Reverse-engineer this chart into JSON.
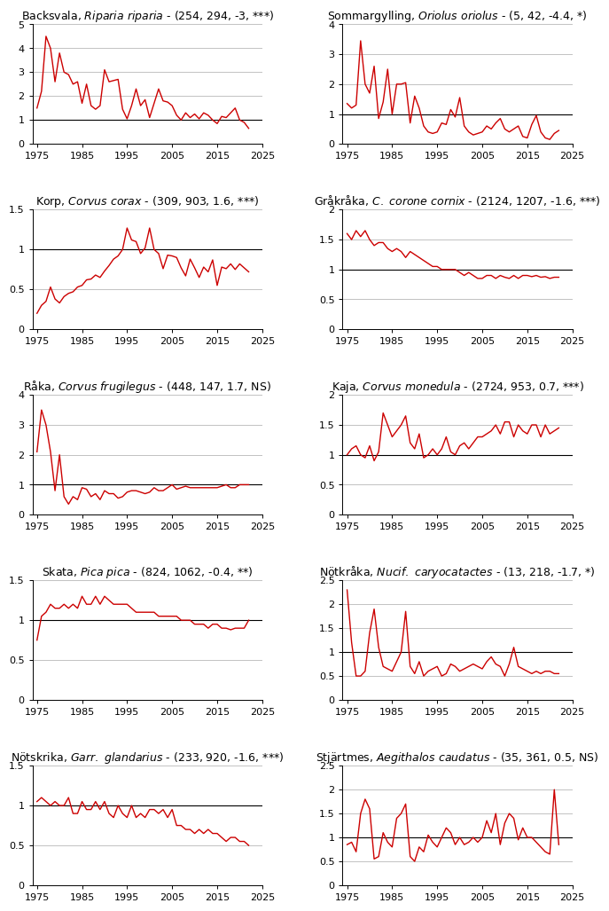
{
  "plots": [
    {
      "title_regular": "Backsvala, ",
      "title_italic": "Riparia riparia",
      "title_rest": " - (254, 294, -3, ***)",
      "ylim": [
        0,
        5
      ],
      "yticks": [
        0,
        1,
        2,
        3,
        4,
        5
      ],
      "hline": 1.0,
      "years": [
        1975,
        1976,
        1977,
        1978,
        1979,
        1980,
        1981,
        1982,
        1983,
        1984,
        1985,
        1986,
        1987,
        1988,
        1989,
        1990,
        1991,
        1992,
        1993,
        1994,
        1995,
        1996,
        1997,
        1998,
        1999,
        2000,
        2001,
        2002,
        2003,
        2004,
        2005,
        2006,
        2007,
        2008,
        2009,
        2010,
        2011,
        2012,
        2013,
        2014,
        2015,
        2016,
        2017,
        2018,
        2019,
        2020,
        2021,
        2022
      ],
      "values": [
        1.5,
        2.2,
        4.5,
        4.0,
        2.6,
        3.8,
        3.0,
        2.9,
        2.5,
        2.6,
        1.7,
        2.5,
        1.6,
        1.45,
        1.6,
        3.1,
        2.6,
        2.65,
        2.7,
        1.45,
        1.05,
        1.6,
        2.3,
        1.6,
        1.85,
        1.1,
        1.7,
        2.3,
        1.8,
        1.75,
        1.6,
        1.2,
        1.0,
        1.3,
        1.1,
        1.25,
        1.05,
        1.3,
        1.2,
        1.0,
        0.85,
        1.15,
        1.1,
        1.3,
        1.5,
        1.0,
        0.9,
        0.65
      ]
    },
    {
      "title_regular": "Sommargylling, ",
      "title_italic": "Oriolus oriolus",
      "title_rest": " - (5, 42, -4.4, *)",
      "ylim": [
        0,
        4
      ],
      "yticks": [
        0,
        1,
        2,
        3,
        4
      ],
      "hline": 1.0,
      "years": [
        1975,
        1976,
        1977,
        1978,
        1979,
        1980,
        1981,
        1982,
        1983,
        1984,
        1985,
        1986,
        1987,
        1988,
        1989,
        1990,
        1991,
        1992,
        1993,
        1994,
        1995,
        1996,
        1997,
        1998,
        1999,
        2000,
        2001,
        2002,
        2003,
        2004,
        2005,
        2006,
        2007,
        2008,
        2009,
        2010,
        2011,
        2012,
        2013,
        2014,
        2015,
        2016,
        2017,
        2018,
        2019,
        2020,
        2021,
        2022
      ],
      "values": [
        1.35,
        1.2,
        1.3,
        3.45,
        2.0,
        1.7,
        2.6,
        0.85,
        1.4,
        2.5,
        1.0,
        2.0,
        2.0,
        2.05,
        0.7,
        1.6,
        1.2,
        0.6,
        0.4,
        0.35,
        0.4,
        0.7,
        0.65,
        1.15,
        0.9,
        1.55,
        0.6,
        0.4,
        0.3,
        0.35,
        0.4,
        0.6,
        0.5,
        0.7,
        0.85,
        0.5,
        0.4,
        0.5,
        0.6,
        0.25,
        0.2,
        0.65,
        0.95,
        0.4,
        0.2,
        0.15,
        0.35,
        0.45
      ]
    },
    {
      "title_regular": "Korp, ",
      "title_italic": "Corvus corax",
      "title_rest": " - (309, 903, 1.6, ***)",
      "ylim": [
        0.0,
        1.5
      ],
      "yticks": [
        0.0,
        0.5,
        1.0,
        1.5
      ],
      "hline": 1.0,
      "years": [
        1975,
        1976,
        1977,
        1978,
        1979,
        1980,
        1981,
        1982,
        1983,
        1984,
        1985,
        1986,
        1987,
        1988,
        1989,
        1990,
        1991,
        1992,
        1993,
        1994,
        1995,
        1996,
        1997,
        1998,
        1999,
        2000,
        2001,
        2002,
        2003,
        2004,
        2005,
        2006,
        2007,
        2008,
        2009,
        2010,
        2011,
        2012,
        2013,
        2014,
        2015,
        2016,
        2017,
        2018,
        2019,
        2020,
        2021,
        2022
      ],
      "values": [
        0.2,
        0.3,
        0.35,
        0.53,
        0.38,
        0.33,
        0.41,
        0.45,
        0.47,
        0.53,
        0.55,
        0.62,
        0.63,
        0.68,
        0.65,
        0.73,
        0.8,
        0.88,
        0.92,
        1.0,
        1.27,
        1.12,
        1.1,
        0.95,
        1.02,
        1.27,
        1.0,
        0.95,
        0.76,
        0.93,
        0.92,
        0.9,
        0.77,
        0.67,
        0.88,
        0.77,
        0.65,
        0.78,
        0.72,
        0.87,
        0.55,
        0.78,
        0.76,
        0.82,
        0.75,
        0.82,
        0.77,
        0.72
      ]
    },
    {
      "title_regular": "Gråkråka, ",
      "title_italic": "C. corone cornix",
      "title_rest": " - (2124, 1207, -1.6, ***)",
      "ylim": [
        0.0,
        2.0
      ],
      "yticks": [
        0.0,
        0.5,
        1.0,
        1.5,
        2.0
      ],
      "hline": 1.0,
      "years": [
        1975,
        1976,
        1977,
        1978,
        1979,
        1980,
        1981,
        1982,
        1983,
        1984,
        1985,
        1986,
        1987,
        1988,
        1989,
        1990,
        1991,
        1992,
        1993,
        1994,
        1995,
        1996,
        1997,
        1998,
        1999,
        2000,
        2001,
        2002,
        2003,
        2004,
        2005,
        2006,
        2007,
        2008,
        2009,
        2010,
        2011,
        2012,
        2013,
        2014,
        2015,
        2016,
        2017,
        2018,
        2019,
        2020,
        2021,
        2022
      ],
      "values": [
        1.6,
        1.5,
        1.65,
        1.55,
        1.65,
        1.5,
        1.4,
        1.45,
        1.45,
        1.35,
        1.3,
        1.35,
        1.3,
        1.2,
        1.3,
        1.25,
        1.2,
        1.15,
        1.1,
        1.05,
        1.05,
        1.0,
        1.0,
        1.0,
        1.0,
        0.95,
        0.9,
        0.95,
        0.9,
        0.85,
        0.85,
        0.9,
        0.9,
        0.85,
        0.9,
        0.87,
        0.85,
        0.9,
        0.85,
        0.9,
        0.9,
        0.88,
        0.9,
        0.87,
        0.88,
        0.85,
        0.87,
        0.87
      ]
    },
    {
      "title_regular": "Råka, ",
      "title_italic": "Corvus frugilegus",
      "title_rest": " - (448, 147, 1.7, NS)",
      "ylim": [
        0,
        4
      ],
      "yticks": [
        0,
        1,
        2,
        3,
        4
      ],
      "hline": 1.0,
      "years": [
        1975,
        1976,
        1977,
        1978,
        1979,
        1980,
        1981,
        1982,
        1983,
        1984,
        1985,
        1986,
        1987,
        1988,
        1989,
        1990,
        1991,
        1992,
        1993,
        1994,
        1995,
        1996,
        1997,
        1998,
        1999,
        2000,
        2001,
        2002,
        2003,
        2004,
        2005,
        2006,
        2007,
        2008,
        2009,
        2010,
        2011,
        2012,
        2013,
        2014,
        2015,
        2016,
        2017,
        2018,
        2019,
        2020,
        2021,
        2022
      ],
      "values": [
        2.1,
        3.5,
        3.0,
        2.1,
        0.8,
        2.0,
        0.6,
        0.35,
        0.6,
        0.5,
        0.9,
        0.85,
        0.6,
        0.7,
        0.5,
        0.8,
        0.7,
        0.7,
        0.55,
        0.6,
        0.75,
        0.8,
        0.8,
        0.75,
        0.7,
        0.75,
        0.9,
        0.8,
        0.8,
        0.9,
        1.0,
        0.85,
        0.9,
        0.95,
        0.9,
        0.9,
        0.9,
        0.9,
        0.9,
        0.9,
        0.9,
        0.95,
        1.0,
        0.9,
        0.9,
        1.0,
        1.0,
        1.0
      ]
    },
    {
      "title_regular": "Kaja, ",
      "title_italic": "Corvus monedula",
      "title_rest": " - (2724, 953, 0.7, ***)",
      "ylim": [
        0.0,
        2.0
      ],
      "yticks": [
        0.0,
        0.5,
        1.0,
        1.5,
        2.0
      ],
      "hline": 1.0,
      "years": [
        1975,
        1976,
        1977,
        1978,
        1979,
        1980,
        1981,
        1982,
        1983,
        1984,
        1985,
        1986,
        1987,
        1988,
        1989,
        1990,
        1991,
        1992,
        1993,
        1994,
        1995,
        1996,
        1997,
        1998,
        1999,
        2000,
        2001,
        2002,
        2003,
        2004,
        2005,
        2006,
        2007,
        2008,
        2009,
        2010,
        2011,
        2012,
        2013,
        2014,
        2015,
        2016,
        2017,
        2018,
        2019,
        2020,
        2021,
        2022
      ],
      "values": [
        1.0,
        1.1,
        1.15,
        1.0,
        0.95,
        1.15,
        0.9,
        1.05,
        1.7,
        1.5,
        1.3,
        1.4,
        1.5,
        1.65,
        1.2,
        1.1,
        1.35,
        0.95,
        1.0,
        1.1,
        1.0,
        1.1,
        1.3,
        1.05,
        1.0,
        1.15,
        1.2,
        1.1,
        1.2,
        1.3,
        1.3,
        1.35,
        1.4,
        1.5,
        1.35,
        1.55,
        1.55,
        1.3,
        1.5,
        1.4,
        1.35,
        1.5,
        1.5,
        1.3,
        1.5,
        1.35,
        1.4,
        1.45
      ]
    },
    {
      "title_regular": "Skata, ",
      "title_italic": "Pica pica",
      "title_rest": " - (824, 1062, -0.4, **)",
      "ylim": [
        0.0,
        1.5
      ],
      "yticks": [
        0.0,
        0.5,
        1.0,
        1.5
      ],
      "hline": 1.0,
      "years": [
        1975,
        1976,
        1977,
        1978,
        1979,
        1980,
        1981,
        1982,
        1983,
        1984,
        1985,
        1986,
        1987,
        1988,
        1989,
        1990,
        1991,
        1992,
        1993,
        1994,
        1995,
        1996,
        1997,
        1998,
        1999,
        2000,
        2001,
        2002,
        2003,
        2004,
        2005,
        2006,
        2007,
        2008,
        2009,
        2010,
        2011,
        2012,
        2013,
        2014,
        2015,
        2016,
        2017,
        2018,
        2019,
        2020,
        2021,
        2022
      ],
      "values": [
        0.75,
        1.05,
        1.1,
        1.2,
        1.15,
        1.15,
        1.2,
        1.15,
        1.2,
        1.15,
        1.3,
        1.2,
        1.2,
        1.3,
        1.2,
        1.3,
        1.25,
        1.2,
        1.2,
        1.2,
        1.2,
        1.15,
        1.1,
        1.1,
        1.1,
        1.1,
        1.1,
        1.05,
        1.05,
        1.05,
        1.05,
        1.05,
        1.0,
        1.0,
        1.0,
        0.95,
        0.95,
        0.95,
        0.9,
        0.95,
        0.95,
        0.9,
        0.9,
        0.88,
        0.9,
        0.9,
        0.9,
        1.0
      ]
    },
    {
      "title_regular": "Nötkråka, ",
      "title_italic": "Nucif. caryocatactes",
      "title_rest": " - (13, 218, -1.7, *)",
      "ylim": [
        0.0,
        2.5
      ],
      "yticks": [
        0.0,
        0.5,
        1.0,
        1.5,
        2.0,
        2.5
      ],
      "hline": 1.0,
      "years": [
        1975,
        1976,
        1977,
        1978,
        1979,
        1980,
        1981,
        1982,
        1983,
        1984,
        1985,
        1986,
        1987,
        1988,
        1989,
        1990,
        1991,
        1992,
        1993,
        1994,
        1995,
        1996,
        1997,
        1998,
        1999,
        2000,
        2001,
        2002,
        2003,
        2004,
        2005,
        2006,
        2007,
        2008,
        2009,
        2010,
        2011,
        2012,
        2013,
        2014,
        2015,
        2016,
        2017,
        2018,
        2019,
        2020,
        2021,
        2022
      ],
      "values": [
        2.3,
        1.2,
        0.5,
        0.5,
        0.6,
        1.4,
        1.9,
        1.1,
        0.7,
        0.65,
        0.6,
        0.8,
        1.0,
        1.85,
        0.7,
        0.55,
        0.8,
        0.5,
        0.6,
        0.65,
        0.7,
        0.5,
        0.55,
        0.75,
        0.7,
        0.6,
        0.65,
        0.7,
        0.75,
        0.7,
        0.65,
        0.8,
        0.9,
        0.75,
        0.7,
        0.5,
        0.75,
        1.1,
        0.7,
        0.65,
        0.6,
        0.55,
        0.6,
        0.55,
        0.6,
        0.6,
        0.55,
        0.55
      ]
    },
    {
      "title_regular": "Nötskrika, ",
      "title_italic": "Garr. glandarius",
      "title_rest": " - (233, 920, -1.6, ***)",
      "ylim": [
        0.0,
        1.5
      ],
      "yticks": [
        0.0,
        0.5,
        1.0,
        1.5
      ],
      "hline": 1.0,
      "years": [
        1975,
        1976,
        1977,
        1978,
        1979,
        1980,
        1981,
        1982,
        1983,
        1984,
        1985,
        1986,
        1987,
        1988,
        1989,
        1990,
        1991,
        1992,
        1993,
        1994,
        1995,
        1996,
        1997,
        1998,
        1999,
        2000,
        2001,
        2002,
        2003,
        2004,
        2005,
        2006,
        2007,
        2008,
        2009,
        2010,
        2011,
        2012,
        2013,
        2014,
        2015,
        2016,
        2017,
        2018,
        2019,
        2020,
        2021,
        2022
      ],
      "values": [
        1.05,
        1.1,
        1.05,
        1.0,
        1.05,
        1.0,
        1.0,
        1.1,
        0.9,
        0.9,
        1.05,
        0.95,
        0.95,
        1.05,
        0.95,
        1.05,
        0.9,
        0.85,
        1.0,
        0.9,
        0.85,
        1.0,
        0.85,
        0.9,
        0.85,
        0.95,
        0.95,
        0.9,
        0.95,
        0.85,
        0.95,
        0.75,
        0.75,
        0.7,
        0.7,
        0.65,
        0.7,
        0.65,
        0.7,
        0.65,
        0.65,
        0.6,
        0.55,
        0.6,
        0.6,
        0.55,
        0.55,
        0.5
      ]
    },
    {
      "title_regular": "Stjärtmes, ",
      "title_italic": "Aegithalos caudatus",
      "title_rest": " - (35, 361, 0.5, NS)",
      "ylim": [
        0.0,
        2.5
      ],
      "yticks": [
        0.0,
        0.5,
        1.0,
        1.5,
        2.0,
        2.5
      ],
      "hline": 1.0,
      "years": [
        1975,
        1976,
        1977,
        1978,
        1979,
        1980,
        1981,
        1982,
        1983,
        1984,
        1985,
        1986,
        1987,
        1988,
        1989,
        1990,
        1991,
        1992,
        1993,
        1994,
        1995,
        1996,
        1997,
        1998,
        1999,
        2000,
        2001,
        2002,
        2003,
        2004,
        2005,
        2006,
        2007,
        2008,
        2009,
        2010,
        2011,
        2012,
        2013,
        2014,
        2015,
        2016,
        2017,
        2018,
        2019,
        2020,
        2021,
        2022
      ],
      "values": [
        0.85,
        0.9,
        0.7,
        1.5,
        1.8,
        1.6,
        0.55,
        0.6,
        1.1,
        0.9,
        0.8,
        1.4,
        1.5,
        1.7,
        0.6,
        0.5,
        0.8,
        0.7,
        1.05,
        0.9,
        0.8,
        1.0,
        1.2,
        1.1,
        0.85,
        1.0,
        0.85,
        0.9,
        1.0,
        0.9,
        1.0,
        1.35,
        1.1,
        1.5,
        0.85,
        1.3,
        1.5,
        1.4,
        0.95,
        1.2,
        1.0,
        1.0,
        0.9,
        0.8,
        0.7,
        0.65,
        2.0,
        0.85
      ]
    }
  ],
  "line_color": "#cc0000",
  "hline_color": "#000000",
  "xlim": [
    1974,
    2024
  ],
  "xticks": [
    1975,
    1985,
    1995,
    2005,
    2015,
    2025
  ],
  "xticklabels": [
    "1975",
    "1985",
    "1995",
    "2005",
    "2015",
    "2025"
  ],
  "grid_color": "#aaaaaa",
  "bg_color": "#ffffff",
  "title_fontsize": 9.0,
  "tick_fontsize": 8.0
}
